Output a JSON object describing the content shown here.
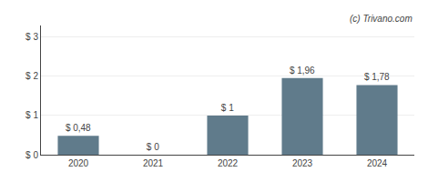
{
  "chart_data": {
    "type": "bar",
    "categories": [
      "2020",
      "2021",
      "2022",
      "2023",
      "2024"
    ],
    "values": [
      0.48,
      0.0,
      1.0,
      1.96,
      1.78
    ],
    "value_labels": [
      "$ 0,48",
      "$ 0",
      "$ 1",
      "$ 1,96",
      "$ 1,78"
    ],
    "color": "#607b8b",
    "ylim": [
      0,
      3.3
    ],
    "yticks": [
      {
        "value": 0,
        "label": "$ 0"
      },
      {
        "value": 1,
        "label": "$ 1"
      },
      {
        "value": 2,
        "label": "$ 2"
      },
      {
        "value": 3,
        "label": "$ 3"
      }
    ],
    "grid": true,
    "annotations": [
      "(c) Trivano.com"
    ]
  }
}
